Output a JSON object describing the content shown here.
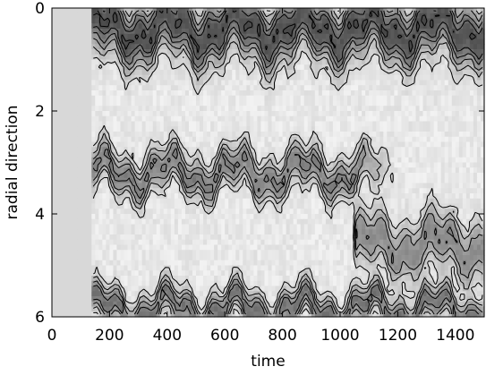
{
  "chart_data": {
    "type": "heatmap",
    "title": "",
    "xlabel": "time",
    "ylabel": "radial direction",
    "xlim": [
      0,
      1500
    ],
    "ylim": [
      6,
      0
    ],
    "x_ticks": [
      0,
      200,
      400,
      600,
      800,
      1000,
      1200,
      1400
    ],
    "y_ticks": [
      0,
      2,
      4,
      6
    ],
    "grid": false,
    "legend": "none",
    "colormap": "grayscale, darker = higher",
    "blank_until_time": 135,
    "bands": [
      {
        "name": "upper band",
        "center_radial": 0.4,
        "width_radial": 0.55,
        "start_time": 140,
        "intensity": 0.8
      },
      {
        "name": "middle band",
        "center_radial": 3.2,
        "width_radial": 0.35,
        "start_time": 140,
        "end_time": 1050,
        "intensity": 0.55
      },
      {
        "name": "lower band",
        "center_radial": 5.85,
        "width_radial": 0.3,
        "start_time": 140,
        "intensity": 0.6
      },
      {
        "name": "right band",
        "center_radial": 4.6,
        "width_radial": 0.5,
        "start_time": 1050,
        "intensity": 0.5
      }
    ],
    "contour_levels": 6
  },
  "colors": {
    "background_blank": "#d8d8d8",
    "low": "#f2f2f2",
    "high": "#333333",
    "contour": "#000000"
  }
}
